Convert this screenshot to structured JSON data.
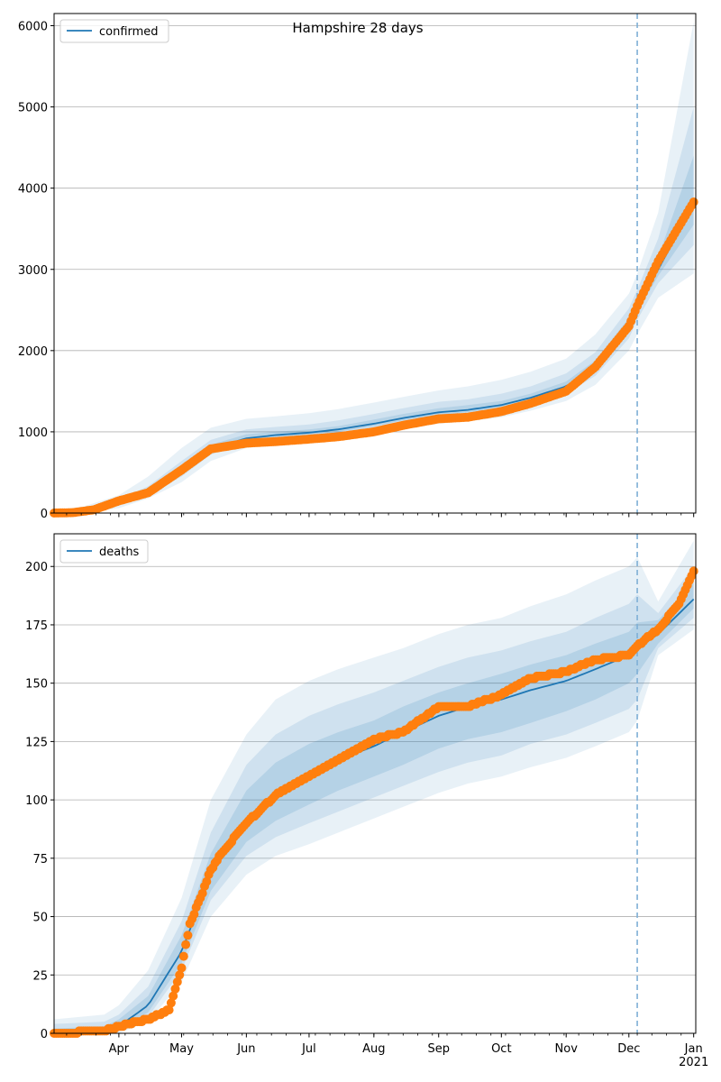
{
  "figure_title": "Hampshire 28 days",
  "colors": {
    "model_line": "#1f77b4",
    "band_fill": "#1f77b4",
    "observed_points": "#ff7f0e",
    "grid": "#b0b0b0",
    "forecast_marker": "#7fb0d6"
  },
  "chart_data": [
    {
      "type": "line",
      "legend": {
        "entries": [
          "confirmed"
        ],
        "placement": "top-left"
      },
      "x_axis": {
        "unit": "days since 2020-03-01 (axis shows dates)",
        "range": [
          "2020-03-01",
          "2021-01-01"
        ],
        "tick_labels": []
      },
      "y_axis": {
        "range": [
          0,
          6150
        ],
        "ticks": [
          0,
          1000,
          2000,
          3000,
          4000,
          5000,
          6000
        ],
        "tick_labels": [
          "0",
          "1000",
          "2000",
          "3000",
          "4000",
          "5000",
          "6000"
        ]
      },
      "grid": "horizontal",
      "forecast_start_date": "2020-12-05",
      "series": [
        {
          "name": "confirmed",
          "kind": "model-median",
          "points": [
            [
              "2020-03-01",
              0
            ],
            [
              "2020-03-15",
              20
            ],
            [
              "2020-04-01",
              130
            ],
            [
              "2020-04-15",
              260
            ],
            [
              "2020-05-01",
              520
            ],
            [
              "2020-05-15",
              790
            ],
            [
              "2020-06-01",
              920
            ],
            [
              "2020-06-15",
              960
            ],
            [
              "2020-07-01",
              990
            ],
            [
              "2020-07-15",
              1030
            ],
            [
              "2020-08-01",
              1100
            ],
            [
              "2020-08-15",
              1170
            ],
            [
              "2020-09-01",
              1240
            ],
            [
              "2020-09-15",
              1270
            ],
            [
              "2020-10-01",
              1330
            ],
            [
              "2020-10-15",
              1420
            ],
            [
              "2020-11-01",
              1560
            ],
            [
              "2020-11-15",
              1800
            ],
            [
              "2020-12-01",
              2300
            ],
            [
              "2020-12-05",
              2550
            ],
            [
              "2020-12-15",
              3000
            ],
            [
              "2021-01-01",
              3800
            ]
          ]
        },
        {
          "kind": "observed",
          "points": [
            [
              "2020-03-01",
              0
            ],
            [
              "2020-03-10",
              5
            ],
            [
              "2020-03-20",
              40
            ],
            [
              "2020-04-01",
              150
            ],
            [
              "2020-04-15",
              250
            ],
            [
              "2020-05-01",
              530
            ],
            [
              "2020-05-15",
              790
            ],
            [
              "2020-06-01",
              860
            ],
            [
              "2020-06-15",
              880
            ],
            [
              "2020-07-01",
              910
            ],
            [
              "2020-07-15",
              940
            ],
            [
              "2020-08-01",
              1000
            ],
            [
              "2020-08-15",
              1080
            ],
            [
              "2020-09-01",
              1160
            ],
            [
              "2020-09-15",
              1180
            ],
            [
              "2020-10-01",
              1250
            ],
            [
              "2020-10-15",
              1350
            ],
            [
              "2020-11-01",
              1500
            ],
            [
              "2020-11-15",
              1800
            ],
            [
              "2020-12-01",
              2300
            ],
            [
              "2020-12-05",
              2550
            ],
            [
              "2020-12-15",
              3100
            ],
            [
              "2021-01-01",
              3830
            ]
          ]
        }
      ],
      "bands": {
        "dates": [
          "2020-03-01",
          "2020-03-15",
          "2020-04-01",
          "2020-04-15",
          "2020-05-01",
          "2020-05-15",
          "2020-06-01",
          "2020-06-15",
          "2020-07-01",
          "2020-07-15",
          "2020-08-01",
          "2020-08-15",
          "2020-09-01",
          "2020-09-15",
          "2020-10-01",
          "2020-10-15",
          "2020-11-01",
          "2020-11-15",
          "2020-12-01",
          "2020-12-05",
          "2020-12-15",
          "2021-01-01"
        ],
        "outer_low": [
          0,
          0,
          60,
          180,
          380,
          640,
          800,
          850,
          880,
          920,
          980,
          1040,
          1100,
          1130,
          1180,
          1260,
          1380,
          1580,
          2000,
          2200,
          2650,
          2950
        ],
        "outer_high": [
          30,
          80,
          220,
          450,
          800,
          1050,
          1160,
          1190,
          1230,
          1280,
          1360,
          1430,
          1510,
          1560,
          1640,
          1740,
          1900,
          2200,
          2700,
          2950,
          3700,
          6050
        ],
        "mid_low": [
          0,
          5,
          90,
          220,
          450,
          720,
          860,
          900,
          930,
          970,
          1040,
          1110,
          1170,
          1200,
          1260,
          1340,
          1470,
          1690,
          2150,
          2380,
          2830,
          3300
        ],
        "mid_high": [
          15,
          45,
          170,
          330,
          640,
          900,
          1030,
          1060,
          1090,
          1140,
          1220,
          1290,
          1370,
          1400,
          1470,
          1560,
          1720,
          1980,
          2520,
          2750,
          3380,
          5000
        ],
        "inner_low": [
          0,
          10,
          110,
          240,
          480,
          750,
          890,
          930,
          960,
          1000,
          1070,
          1140,
          1210,
          1240,
          1300,
          1380,
          1520,
          1750,
          2230,
          2470,
          2920,
          3550
        ],
        "inner_high": [
          10,
          30,
          150,
          290,
          570,
          840,
          970,
          1000,
          1030,
          1070,
          1150,
          1220,
          1290,
          1330,
          1380,
          1470,
          1620,
          1880,
          2400,
          2650,
          3150,
          4400
        ]
      }
    },
    {
      "type": "line",
      "legend": {
        "entries": [
          "deaths"
        ],
        "placement": "top-left"
      },
      "x_axis": {
        "unit": "days since 2020-03-01 (axis shows dates)",
        "range": [
          "2020-03-01",
          "2021-01-01"
        ],
        "tick_labels": [
          "Apr",
          "May",
          "Jun",
          "Jul",
          "Aug",
          "Sep",
          "Oct",
          "Nov",
          "Dec",
          "Jan\n2021"
        ],
        "tick_dates": [
          "2020-04-01",
          "2020-05-01",
          "2020-06-01",
          "2020-07-01",
          "2020-08-01",
          "2020-09-01",
          "2020-10-01",
          "2020-11-01",
          "2020-12-01",
          "2021-01-01"
        ]
      },
      "y_axis": {
        "range": [
          0,
          214
        ],
        "ticks": [
          0,
          25,
          50,
          75,
          100,
          125,
          150,
          175,
          200
        ],
        "tick_labels": [
          "0",
          "25",
          "50",
          "75",
          "100",
          "125",
          "150",
          "175",
          "200"
        ]
      },
      "grid": "horizontal",
      "forecast_start_date": "2020-12-05",
      "series": [
        {
          "name": "deaths",
          "kind": "model-median",
          "points": [
            [
              "2020-03-01",
              0
            ],
            [
              "2020-03-25",
              1
            ],
            [
              "2020-04-01",
              3
            ],
            [
              "2020-04-15",
              12
            ],
            [
              "2020-05-01",
              35
            ],
            [
              "2020-05-15",
              68
            ],
            [
              "2020-06-01",
              92
            ],
            [
              "2020-06-15",
              103
            ],
            [
              "2020-07-01",
              111
            ],
            [
              "2020-07-15",
              117
            ],
            [
              "2020-08-01",
              123
            ],
            [
              "2020-08-15",
              129
            ],
            [
              "2020-09-01",
              136
            ],
            [
              "2020-09-15",
              140
            ],
            [
              "2020-10-01",
              143
            ],
            [
              "2020-10-15",
              147
            ],
            [
              "2020-11-01",
              151
            ],
            [
              "2020-11-15",
              156
            ],
            [
              "2020-12-01",
              162
            ],
            [
              "2020-12-05",
              165
            ],
            [
              "2020-12-15",
              171
            ],
            [
              "2021-01-01",
              186
            ]
          ]
        },
        {
          "kind": "observed",
          "points": [
            [
              "2020-03-01",
              0
            ],
            [
              "2020-03-25",
              1
            ],
            [
              "2020-04-01",
              3
            ],
            [
              "2020-04-15",
              6
            ],
            [
              "2020-04-25",
              10
            ],
            [
              "2020-05-01",
              28
            ],
            [
              "2020-05-05",
              47
            ],
            [
              "2020-05-10",
              58
            ],
            [
              "2020-05-15",
              70
            ],
            [
              "2020-05-20",
              77
            ],
            [
              "2020-06-01",
              90
            ],
            [
              "2020-06-15",
              102
            ],
            [
              "2020-07-01",
              110
            ],
            [
              "2020-07-15",
              117
            ],
            [
              "2020-08-01",
              126
            ],
            [
              "2020-08-15",
              129
            ],
            [
              "2020-09-01",
              140
            ],
            [
              "2020-09-15",
              140
            ],
            [
              "2020-10-01",
              145
            ],
            [
              "2020-10-15",
              152
            ],
            [
              "2020-11-01",
              155
            ],
            [
              "2020-11-15",
              160
            ],
            [
              "2020-12-01",
              162
            ],
            [
              "2020-12-05",
              166
            ],
            [
              "2020-12-15",
              173
            ],
            [
              "2020-12-25",
              184
            ],
            [
              "2021-01-01",
              198
            ]
          ]
        }
      ],
      "bands": {
        "dates": [
          "2020-03-01",
          "2020-03-25",
          "2020-04-01",
          "2020-04-15",
          "2020-05-01",
          "2020-05-15",
          "2020-06-01",
          "2020-06-15",
          "2020-07-01",
          "2020-07-15",
          "2020-08-01",
          "2020-08-15",
          "2020-09-01",
          "2020-09-15",
          "2020-10-01",
          "2020-10-15",
          "2020-11-01",
          "2020-11-15",
          "2020-12-01",
          "2020-12-05",
          "2020-12-15",
          "2021-01-01"
        ],
        "outer_low": [
          0,
          0,
          0,
          5,
          22,
          50,
          68,
          76,
          81,
          86,
          92,
          97,
          103,
          107,
          110,
          114,
          118,
          123,
          129,
          134,
          162,
          173
        ],
        "outer_high": [
          6,
          8,
          12,
          27,
          58,
          100,
          128,
          143,
          151,
          156,
          161,
          165,
          171,
          175,
          178,
          183,
          188,
          194,
          200,
          204,
          185,
          211
        ],
        "mid_low": [
          0,
          0,
          1,
          7,
          27,
          57,
          76,
          84,
          90,
          95,
          101,
          106,
          112,
          116,
          119,
          124,
          128,
          133,
          139,
          143,
          165,
          178
        ],
        "mid_high": [
          4,
          5,
          8,
          20,
          48,
          86,
          115,
          128,
          136,
          141,
          146,
          151,
          157,
          161,
          164,
          168,
          172,
          178,
          184,
          188,
          180,
          200
        ],
        "inner_low": [
          0,
          0,
          2,
          9,
          30,
          61,
          82,
          91,
          98,
          104,
          110,
          115,
          122,
          126,
          129,
          133,
          138,
          143,
          150,
          154,
          167,
          182
        ],
        "inner_high": [
          2,
          3,
          6,
          16,
          42,
          77,
          104,
          116,
          124,
          129,
          134,
          140,
          146,
          150,
          154,
          158,
          162,
          167,
          172,
          176,
          177,
          193
        ]
      }
    }
  ]
}
